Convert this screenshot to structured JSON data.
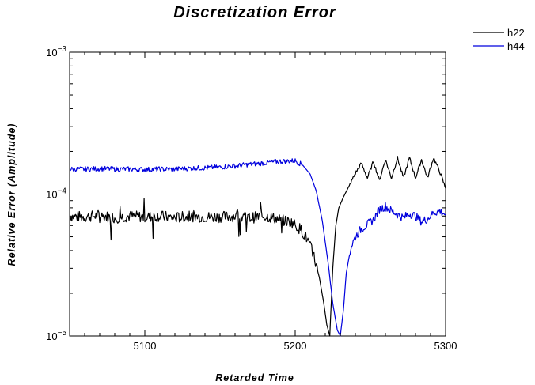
{
  "chart_data": {
    "type": "line",
    "title": "Discretization Error",
    "xlabel": "Retarded Time",
    "ylabel": "Relative Error (Amplitude)",
    "xlim": [
      5050,
      5300
    ],
    "ylim": [
      1e-05,
      0.001
    ],
    "yscale": "log",
    "x_ticks": [
      5100,
      5200,
      5300
    ],
    "x_tick_labels": [
      "5100",
      "5200",
      "5300"
    ],
    "y_ticks": [
      {
        "base": "10",
        "exp": "−5",
        "value": 1e-05
      },
      {
        "base": "10",
        "exp": "−4",
        "value": 0.0001
      },
      {
        "base": "10",
        "exp": "−3",
        "value": 0.001
      }
    ],
    "grid": false,
    "legend_position": "top-right",
    "series": [
      {
        "name": "h22",
        "color": "#000000",
        "x": [
          5050,
          5060,
          5070,
          5080,
          5090,
          5100,
          5110,
          5120,
          5130,
          5140,
          5150,
          5160,
          5170,
          5180,
          5190,
          5198,
          5204,
          5208,
          5212,
          5216,
          5219,
          5221,
          5223,
          5225,
          5227,
          5229,
          5232,
          5236,
          5240,
          5244,
          5248,
          5252,
          5256,
          5260,
          5264,
          5268,
          5272,
          5276,
          5280,
          5284,
          5288,
          5292,
          5296,
          5300
        ],
        "y": [
          7e-05,
          6.9e-05,
          7.1e-05,
          6.8e-05,
          7e-05,
          6.9e-05,
          7e-05,
          6.8e-05,
          7e-05,
          6.9e-05,
          6.9e-05,
          7e-05,
          6.8e-05,
          7e-05,
          6.6e-05,
          6.3e-05,
          5.6e-05,
          4.8e-05,
          3.8e-05,
          2.6e-05,
          1.7e-05,
          1.2e-05,
          1e-05,
          3e-05,
          6e-05,
          8e-05,
          9.5e-05,
          0.000115,
          0.00014,
          0.000165,
          0.00013,
          0.00017,
          0.000125,
          0.000175,
          0.00013,
          0.00018,
          0.00013,
          0.00018,
          0.00013,
          0.000175,
          0.00013,
          0.00018,
          0.000145,
          0.00011
        ]
      },
      {
        "name": "h44",
        "color": "#0000dd",
        "x": [
          5050,
          5060,
          5070,
          5080,
          5090,
          5100,
          5110,
          5120,
          5130,
          5140,
          5150,
          5160,
          5170,
          5180,
          5190,
          5200,
          5205,
          5210,
          5214,
          5218,
          5222,
          5225,
          5228,
          5230,
          5232,
          5234,
          5237,
          5240,
          5244,
          5248,
          5252,
          5256,
          5260,
          5264,
          5268,
          5272,
          5276,
          5280,
          5284,
          5288,
          5292,
          5296,
          5300
        ],
        "y": [
          0.00015,
          0.00015,
          0.000151,
          0.00015,
          0.00015,
          0.000149,
          0.00015,
          0.00015,
          0.000152,
          0.000153,
          0.000155,
          0.000158,
          0.000162,
          0.000166,
          0.00017,
          0.000172,
          0.00016,
          0.000138,
          0.000105,
          6.5e-05,
          3.2e-05,
          1.7e-05,
          1.1e-05,
          1e-05,
          1.5e-05,
          2.8e-05,
          4.2e-05,
          5e-05,
          5.7e-05,
          6.1e-05,
          6.6e-05,
          7.8e-05,
          8.2e-05,
          7.6e-05,
          7.2e-05,
          6.8e-05,
          7.3e-05,
          7e-05,
          6.4e-05,
          6.7e-05,
          7.4e-05,
          7.6e-05,
          7.2e-05
        ]
      }
    ]
  }
}
